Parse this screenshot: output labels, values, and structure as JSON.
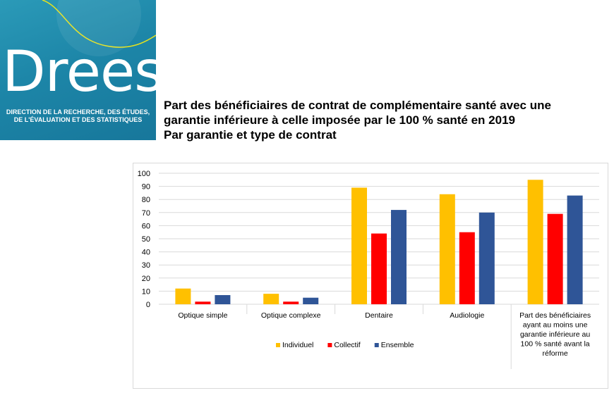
{
  "logo": {
    "word": "Drees",
    "subtitle_lines": [
      "DIRECTION DE LA RECHERCHE, DES ÉTUDES,",
      "DE L'ÉVALUATION ET DES STATISTIQUES"
    ],
    "colors": {
      "background": "#1d86a8",
      "accent": "#e6e21d"
    }
  },
  "title": {
    "lines": [
      "Part des bénéficiaires de contrat de complémentaire santé avec une",
      "garantie inférieure à celle imposée par le 100 % santé en 2019",
      "Par garantie et type de contrat"
    ]
  },
  "chart_data": {
    "type": "bar",
    "categories": [
      [
        "Optique simple"
      ],
      [
        "Optique complexe"
      ],
      [
        "Dentaire"
      ],
      [
        "Audiologie"
      ],
      [
        "Part des bénéficiaires",
        "ayant au moins une",
        "garantie inférieure au",
        "100 % santé avant la",
        "réforme"
      ]
    ],
    "series": [
      {
        "name": "Individuel",
        "color": "#ffc000",
        "values": [
          12,
          8,
          89,
          84,
          95
        ]
      },
      {
        "name": "Collectif",
        "color": "#ff0000",
        "values": [
          2,
          2,
          54,
          55,
          69
        ]
      },
      {
        "name": "Ensemble",
        "color": "#2f5597",
        "values": [
          7,
          5,
          72,
          70,
          83
        ]
      }
    ],
    "ylim": [
      0,
      100
    ],
    "yticks": [
      "0",
      "10",
      "20",
      "30",
      "40",
      "50",
      "60",
      "70",
      "80",
      "90",
      "100"
    ],
    "grid": true,
    "legend_position": "bottom"
  }
}
